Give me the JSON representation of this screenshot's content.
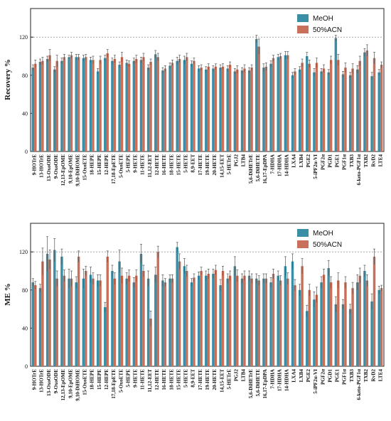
{
  "palette": {
    "meoh": "#3a8fa6",
    "acn": "#c8705a",
    "error": "#555555",
    "ref_line": "#999999"
  },
  "chart_data": [
    {
      "type": "bar",
      "ylabel": "Recovery %",
      "ylim": [
        0,
        150
      ],
      "yticks": [
        0,
        40,
        80,
        120
      ],
      "ref_line": 120,
      "grid": false,
      "legend_position": "top-right",
      "categories": [
        "9-HOTrE",
        "13-HOTrE",
        "13-OxoODE",
        "9-OxoODE",
        "12,13-EpOME",
        "9,10-EpOME",
        "9,10-DiHOME",
        "15-OxoETE",
        "18-HEPE",
        "15-HEPE",
        "12-HEPE",
        "17,18-EpETE",
        "5-OxoETE",
        "5-HEPE",
        "9-HETE",
        "11-HETE",
        "11,12-EET",
        "12-HETE",
        "16-HETE",
        "18-HETE",
        "15-HETE",
        "5-HETE",
        "8,9-EET",
        "17-HETE",
        "19-HETE",
        "20-HETE",
        "14,15-EET",
        "5-HETrE",
        "PGJ2",
        "LTB4",
        "5,6-DiHETrE",
        "5,6-DiHETE",
        "16,17-EpDPA",
        "7-HDHA",
        "17-HDHA",
        "14-HDHA",
        "LXA4",
        "LXB4",
        "PGE2",
        "5-iPF2α-VI",
        "PGF2α",
        "PGD1",
        "PGE1",
        "PGF1α",
        "TXB3",
        "6-keto-PGF1α",
        "TXB2",
        "RvD2",
        "LTE4"
      ],
      "series": [
        {
          "name": "MeOH",
          "values": [
            88,
            94,
            97,
            86,
            95,
            99,
            99,
            98,
            96,
            84,
            98,
            95,
            91,
            93,
            95,
            96,
            88,
            102,
            85,
            90,
            95,
            96,
            92,
            87,
            86,
            87,
            88,
            87,
            84,
            85,
            85,
            118,
            88,
            92,
            99,
            101,
            80,
            86,
            100,
            83,
            84,
            83,
            119,
            81,
            80,
            86,
            104,
            79,
            83
          ],
          "errors": [
            3,
            3,
            3,
            3,
            3,
            2,
            3,
            3,
            3,
            3,
            3,
            3,
            3,
            3,
            3,
            3,
            3,
            4,
            3,
            3,
            4,
            4,
            3,
            3,
            3,
            3,
            3,
            3,
            3,
            3,
            3,
            4,
            4,
            3,
            3,
            4,
            3,
            3,
            4,
            4,
            3,
            3,
            3,
            3,
            3,
            4,
            4,
            4,
            3
          ]
        },
        {
          "name": "50%ACN",
          "values": [
            92,
            95,
            101,
            95,
            99,
            101,
            99,
            99,
            96,
            96,
            103,
            97,
            99,
            92,
            97,
            99,
            94,
            99,
            87,
            93,
            97,
            99,
            95,
            88,
            89,
            89,
            89,
            91,
            86,
            87,
            88,
            110,
            89,
            98,
            100,
            101,
            84,
            93,
            92,
            93,
            87,
            96,
            96,
            88,
            87,
            95,
            106,
            98,
            91
          ],
          "errors": [
            4,
            4,
            6,
            6,
            3,
            3,
            3,
            3,
            4,
            4,
            4,
            4,
            5,
            3,
            4,
            4,
            3,
            4,
            3,
            3,
            4,
            4,
            3,
            3,
            3,
            3,
            3,
            3,
            4,
            4,
            3,
            8,
            4,
            3,
            3,
            4,
            3,
            4,
            4,
            5,
            4,
            4,
            6,
            5,
            5,
            5,
            6,
            6,
            3
          ]
        }
      ]
    },
    {
      "type": "bar",
      "ylabel": "ME %",
      "ylim": [
        0,
        150
      ],
      "yticks": [
        0,
        40,
        80,
        120
      ],
      "ref_line": 120,
      "grid": false,
      "legend_position": "top-right",
      "categories": [
        "9-HOTrE",
        "13-HOTrE",
        "13-OxoODE",
        "9-OxoODE",
        "12,13-EpOME",
        "9,10-EpOME",
        "9,10-DiHOME",
        "15-OxoETE",
        "18-HEPE",
        "15-HEPE",
        "12-HEPE",
        "17,18-EpETE",
        "5-OxoETE",
        "5-HEPE",
        "9-HETE",
        "11-HETE",
        "11,12-EET",
        "12-HETE",
        "16-HETE",
        "18-HETE",
        "15-HETE",
        "5-HETE",
        "8,9-EET",
        "17-HETE",
        "19-HETE",
        "20-HETE",
        "14,15-EET",
        "5-HETrE",
        "PGJ2",
        "LTB4",
        "5,6-DiHETrE",
        "5,6-DiHETE",
        "16,17-EpDPA",
        "7-HDHA",
        "17-HDHA",
        "14-HDHA",
        "LXA4",
        "LXB4",
        "PGE2",
        "5-iPF2α-VI",
        "PGF2α",
        "PGD1",
        "PGE1",
        "PGF1α",
        "TXB3",
        "6-keto-PGF1α",
        "TXB2",
        "RvD2",
        "LTE4"
      ],
      "series": [
        {
          "name": "MeOH",
          "values": [
            88,
            82,
            118,
            122,
            115,
            92,
            88,
            92,
            96,
            90,
            62,
            100,
            110,
            92,
            88,
            118,
            92,
            96,
            90,
            92,
            125,
            105,
            88,
            95,
            95,
            97,
            85,
            92,
            105,
            92,
            95,
            92,
            92,
            88,
            95,
            105,
            110,
            80,
            58,
            70,
            88,
            103,
            65,
            65,
            60,
            88,
            100,
            68,
            80
          ],
          "errors": [
            4,
            4,
            18,
            12,
            8,
            10,
            6,
            10,
            8,
            6,
            5,
            6,
            12,
            6,
            5,
            10,
            8,
            8,
            6,
            4,
            5,
            8,
            4,
            4,
            5,
            5,
            6,
            5,
            10,
            5,
            5,
            5,
            5,
            5,
            5,
            10,
            8,
            6,
            6,
            8,
            6,
            8,
            8,
            5,
            5,
            8,
            6,
            8,
            4
          ]
        },
        {
          "name": "50%ACN",
          "values": [
            85,
            110,
            112,
            92,
            95,
            92,
            115,
            100,
            92,
            90,
            115,
            92,
            95,
            95,
            95,
            100,
            50,
            120,
            88,
            92,
            110,
            100,
            93,
            100,
            97,
            101,
            100,
            95,
            95,
            95,
            92,
            90,
            92,
            97,
            90,
            92,
            85,
            105,
            80,
            75,
            96,
            88,
            90,
            88,
            82,
            95,
            90,
            115,
            82
          ],
          "errors": [
            4,
            14,
            10,
            8,
            6,
            8,
            6,
            5,
            6,
            6,
            6,
            6,
            8,
            6,
            6,
            6,
            8,
            6,
            4,
            4,
            8,
            6,
            4,
            4,
            5,
            5,
            5,
            5,
            6,
            5,
            5,
            5,
            5,
            5,
            5,
            6,
            6,
            8,
            6,
            8,
            6,
            6,
            8,
            6,
            6,
            8,
            6,
            8,
            3
          ]
        }
      ]
    }
  ]
}
